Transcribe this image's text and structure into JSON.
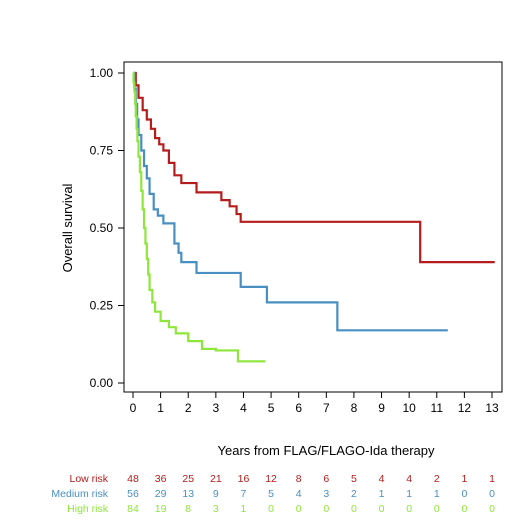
{
  "chart_data": {
    "type": "line",
    "step": true,
    "title": "",
    "xlabel": "Years from FLAG/FLAGO-Ida therapy",
    "ylabel": "Overall survival",
    "xlim": [
      0,
      13
    ],
    "ylim": [
      0,
      1
    ],
    "x_ticks": [
      0,
      1,
      2,
      3,
      4,
      5,
      6,
      7,
      8,
      9,
      10,
      11,
      12,
      13
    ],
    "y_ticks": [
      "0.00",
      "0.25",
      "0.50",
      "0.75",
      "1.00"
    ],
    "grid": false,
    "legend": "none",
    "series": [
      {
        "name": "Low risk",
        "color": "#b51c1c",
        "x": [
          0,
          0.1,
          0.2,
          0.35,
          0.5,
          0.65,
          0.8,
          0.95,
          1.1,
          1.3,
          1.5,
          1.75,
          2.3,
          3.2,
          3.5,
          3.75,
          3.9,
          10.4,
          13.1
        ],
        "y": [
          1.0,
          0.96,
          0.92,
          0.88,
          0.85,
          0.82,
          0.79,
          0.77,
          0.75,
          0.71,
          0.67,
          0.645,
          0.615,
          0.59,
          0.57,
          0.545,
          0.52,
          0.39,
          0.39
        ]
      },
      {
        "name": "Medium risk",
        "color": "#4a8fc2",
        "x": [
          0,
          0.05,
          0.1,
          0.15,
          0.2,
          0.3,
          0.4,
          0.5,
          0.6,
          0.75,
          0.9,
          1.1,
          1.5,
          1.65,
          1.75,
          2.3,
          3.9,
          4.85,
          7.4,
          11.4
        ],
        "y": [
          1.0,
          0.95,
          0.9,
          0.85,
          0.8,
          0.75,
          0.7,
          0.66,
          0.61,
          0.56,
          0.54,
          0.515,
          0.45,
          0.42,
          0.39,
          0.355,
          0.31,
          0.26,
          0.17,
          0.17
        ]
      },
      {
        "name": "High risk",
        "color": "#8ee63a",
        "x": [
          0,
          0.02,
          0.05,
          0.08,
          0.1,
          0.13,
          0.16,
          0.2,
          0.25,
          0.3,
          0.35,
          0.4,
          0.45,
          0.5,
          0.55,
          0.6,
          0.7,
          0.8,
          1.0,
          1.3,
          1.55,
          2.0,
          2.5,
          3.0,
          3.8,
          4.8
        ],
        "y": [
          1.0,
          0.97,
          0.94,
          0.9,
          0.86,
          0.82,
          0.78,
          0.73,
          0.68,
          0.62,
          0.56,
          0.5,
          0.45,
          0.4,
          0.35,
          0.3,
          0.26,
          0.23,
          0.2,
          0.18,
          0.16,
          0.135,
          0.11,
          0.105,
          0.07,
          0.07
        ]
      }
    ],
    "risk_table": {
      "x": [
        0,
        1,
        2,
        3,
        4,
        5,
        6,
        7,
        8,
        9,
        10,
        11,
        12,
        13
      ],
      "rows": [
        {
          "label": "Low risk",
          "color": "#b51c1c",
          "values": [
            "48",
            "36",
            "25",
            "21",
            "16",
            "12",
            "8",
            "6",
            "5",
            "4",
            "4",
            "2",
            "1",
            "1"
          ]
        },
        {
          "label": "Medium risk",
          "color": "#4a8fc2",
          "values": [
            "56",
            "29",
            "13",
            "9",
            "7",
            "5",
            "4",
            "3",
            "2",
            "1",
            "1",
            "1",
            "0",
            "0"
          ]
        },
        {
          "label": "High risk",
          "color": "#8ee63a",
          "values": [
            "84",
            "19",
            "8",
            "3",
            "1",
            "0",
            "0",
            "0",
            "0",
            "0",
            "0",
            "0",
            "0",
            "0"
          ]
        }
      ]
    }
  }
}
